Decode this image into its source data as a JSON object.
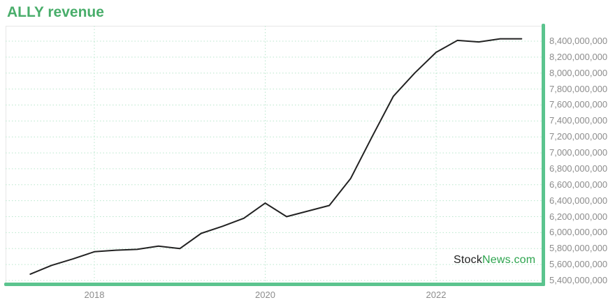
{
  "header": {
    "title": "ALLY revenue"
  },
  "watermark": {
    "prefix": "Stock",
    "suffix": "News.com"
  },
  "colors": {
    "title": "#48ad6a",
    "axis_bar": "#5bc48e",
    "gridline": "#b8e6cc",
    "tick_label": "#8c8c8c",
    "line": "#222222",
    "watermark_prefix": "#222222",
    "watermark_suffix": "#2da44e"
  },
  "chart_data": {
    "type": "line",
    "title": "ALLY revenue",
    "grid": true,
    "legend": false,
    "y_axis": {
      "side": "right",
      "ylim": [
        5400000000,
        8400000000
      ],
      "tick_step": 200000000,
      "tick_labels": [
        "8,400,000,000",
        "8,200,000,000",
        "8,000,000,000",
        "7,800,000,000",
        "7,600,000,000",
        "7,400,000,000",
        "7,200,000,000",
        "7,000,000,000",
        "6,800,000,000",
        "6,600,000,000",
        "6,400,000,000",
        "6,200,000,000",
        "6,000,000,000",
        "5,800,000,000",
        "5,600,000,000",
        "5,400,000,000"
      ]
    },
    "x_axis": {
      "ticks": [
        {
          "label": "2018",
          "year": 2018
        },
        {
          "label": "2020",
          "year": 2020
        },
        {
          "label": "2022",
          "year": 2022
        }
      ]
    },
    "series": [
      {
        "name": "ALLY revenue",
        "x": [
          2017.25,
          2017.5,
          2017.75,
          2018.0,
          2018.25,
          2018.5,
          2018.75,
          2019.0,
          2019.25,
          2019.5,
          2019.75,
          2020.0,
          2020.25,
          2020.5,
          2020.75,
          2021.0,
          2021.25,
          2021.5,
          2021.75,
          2022.0,
          2022.25,
          2022.5,
          2022.75,
          2023.0
        ],
        "values": [
          5480000000,
          5590000000,
          5670000000,
          5760000000,
          5780000000,
          5790000000,
          5830000000,
          5800000000,
          5990000000,
          6080000000,
          6180000000,
          6370000000,
          6200000000,
          6270000000,
          6340000000,
          6680000000,
          7200000000,
          7710000000,
          8000000000,
          8260000000,
          8410000000,
          8390000000,
          8430000000,
          8430000000
        ]
      }
    ]
  }
}
